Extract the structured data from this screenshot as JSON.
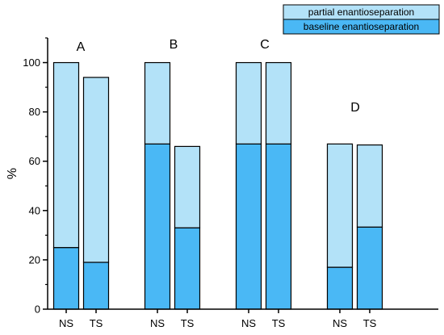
{
  "chart_data": {
    "type": "bar",
    "stacked": true,
    "title": "",
    "xlabel": "",
    "ylabel": "%",
    "ylim": [
      0,
      110
    ],
    "yticks": [
      0,
      20,
      40,
      60,
      80,
      100
    ],
    "grid": false,
    "legend_position": "top-right",
    "groups": [
      "A",
      "B",
      "C",
      "D"
    ],
    "categories": [
      "NS",
      "TS",
      "NS",
      "TS",
      "NS",
      "TS",
      "NS",
      "TS"
    ],
    "series": [
      {
        "name": "baseline enantioseparation",
        "color": "#4ab8f5",
        "values": [
          25,
          19,
          67,
          33,
          67,
          67,
          17,
          33.3
        ]
      },
      {
        "name": "partial enantioseparation",
        "color": "#b3e2f8",
        "values": [
          75,
          75,
          33,
          33,
          33,
          33,
          50,
          33.3
        ]
      }
    ]
  }
}
